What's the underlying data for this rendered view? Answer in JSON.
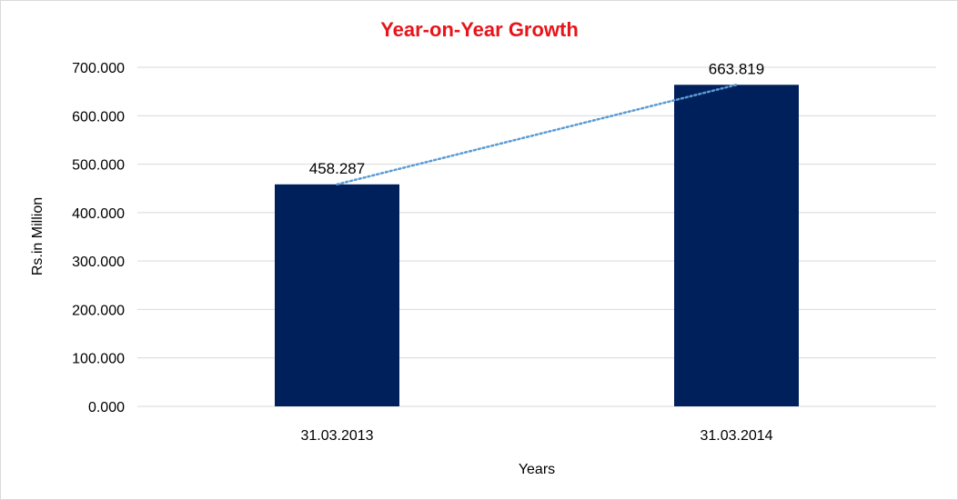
{
  "chart_data": {
    "type": "bar",
    "title": "Year-on-Year Growth",
    "title_color": "#e8141b",
    "xlabel": "Years",
    "ylabel": "Rs.in Million",
    "categories": [
      "31.03.2013",
      "31.03.2014"
    ],
    "series": [
      {
        "values": [
          458.287,
          663.819
        ],
        "data_labels": [
          "458.287",
          "663.819"
        ],
        "color": "#00205b"
      }
    ],
    "ylim": [
      0,
      700
    ],
    "yticks": [
      0,
      100,
      200,
      300,
      400,
      500,
      600,
      700
    ],
    "ytick_labels": [
      "0.000",
      "100.000",
      "200.000",
      "300.000",
      "400.000",
      "500.000",
      "600.000",
      "700.000"
    ],
    "grid": true,
    "gridline_color": "#d9d9d9",
    "trendline": {
      "style": "dotted",
      "type": "linear",
      "color": "#5b9bd5"
    },
    "legend": "none"
  }
}
